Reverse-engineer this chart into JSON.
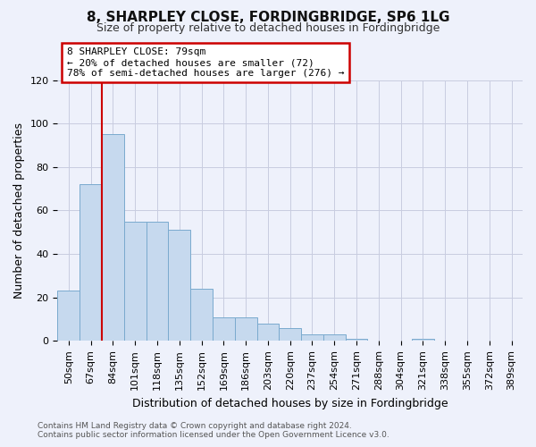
{
  "title": "8, SHARPLEY CLOSE, FORDINGBRIDGE, SP6 1LG",
  "subtitle": "Size of property relative to detached houses in Fordingbridge",
  "xlabel": "Distribution of detached houses by size in Fordingbridge",
  "ylabel": "Number of detached properties",
  "footer_line1": "Contains HM Land Registry data © Crown copyright and database right 2024.",
  "footer_line2": "Contains public sector information licensed under the Open Government Licence v3.0.",
  "categories": [
    "50sqm",
    "67sqm",
    "84sqm",
    "101sqm",
    "118sqm",
    "135sqm",
    "152sqm",
    "169sqm",
    "186sqm",
    "203sqm",
    "220sqm",
    "237sqm",
    "254sqm",
    "271sqm",
    "288sqm",
    "304sqm",
    "321sqm",
    "338sqm",
    "355sqm",
    "372sqm",
    "389sqm"
  ],
  "values": [
    23,
    72,
    95,
    55,
    55,
    51,
    24,
    11,
    11,
    8,
    6,
    3,
    3,
    1,
    0,
    0,
    1,
    0,
    0,
    0,
    0
  ],
  "bar_color": "#c6d9ee",
  "bar_edge_color": "#7aaace",
  "ylim_max": 120,
  "yticks": [
    0,
    20,
    40,
    60,
    80,
    100,
    120
  ],
  "grid_color": "#c8cce0",
  "background_color": "#eef1fb",
  "red_line_x": 1.5,
  "annotation_line1": "8 SHARPLEY CLOSE: 79sqm",
  "annotation_line2": "← 20% of detached houses are smaller (72)",
  "annotation_line3": "78% of semi-detached houses are larger (276) →",
  "annotation_box_facecolor": "#ffffff",
  "annotation_box_edgecolor": "#cc0000",
  "red_line_color": "#cc0000",
  "title_fontsize": 11,
  "subtitle_fontsize": 9,
  "ylabel_fontsize": 9,
  "xlabel_fontsize": 9,
  "tick_fontsize": 8,
  "annotation_fontsize": 8,
  "footer_fontsize": 6.5
}
